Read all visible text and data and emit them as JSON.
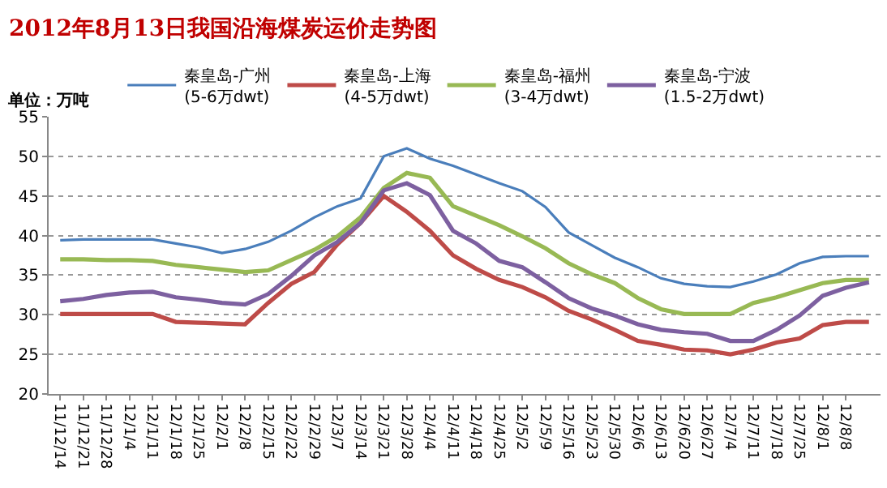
{
  "chart_data": {
    "type": "line",
    "title": "2012年8月13日我国沿海煤炭运价走势图",
    "annotations": [
      "单位：万吨"
    ],
    "categories": [
      "11/12/14",
      "11/12/21",
      "11/12/28",
      "12/1/4",
      "12/1/11",
      "12/1/18",
      "12/1/25",
      "12/2/1",
      "12/2/8",
      "12/2/15",
      "12/2/22",
      "12/2/29",
      "12/3/7",
      "12/3/14",
      "12/3/21",
      "12/3/28",
      "12/4/4",
      "12/4/11",
      "12/4/18",
      "12/4/25",
      "12/5/2",
      "12/5/9",
      "12/5/16",
      "12/5/23",
      "12/5/30",
      "12/6/6",
      "12/6/13",
      "12/6/20",
      "12/6/27",
      "12/7/4",
      "12/7/11",
      "12/7/18",
      "12/7/25",
      "12/8/1",
      "12/8/8",
      null
    ],
    "series": [
      {
        "name": "秦皇岛-广州\n(5-6万dwt)",
        "color": "#4a7ebb",
        "values": [
          39.4,
          39.5,
          39.5,
          39.5,
          39.5,
          39.0,
          38.5,
          37.8,
          38.3,
          39.2,
          40.6,
          42.3,
          43.7,
          44.7,
          50.0,
          51.0,
          49.7,
          48.8,
          47.7,
          46.6,
          45.6,
          43.6,
          40.4,
          38.8,
          37.2,
          36.0,
          34.6,
          33.9,
          33.6,
          33.5,
          34.2,
          35.1,
          36.5,
          37.3,
          37.4,
          37.4
        ]
      },
      {
        "name": "秦皇岛-上海\n(4-5万dwt)",
        "color": "#be4b48",
        "values": [
          30.1,
          30.1,
          30.1,
          30.1,
          30.1,
          29.1,
          29.0,
          28.9,
          28.8,
          31.5,
          33.9,
          35.4,
          38.9,
          41.6,
          45.0,
          43.0,
          40.6,
          37.5,
          35.8,
          34.4,
          33.5,
          32.2,
          30.5,
          29.4,
          28.1,
          26.7,
          26.2,
          25.6,
          25.5,
          25.0,
          25.6,
          26.5,
          27.0,
          28.7,
          29.1,
          29.1
        ]
      },
      {
        "name": "秦皇岛-福州\n(3-4万dwt)",
        "color": "#98b954",
        "values": [
          37.0,
          37.0,
          36.9,
          36.9,
          36.8,
          36.3,
          36.0,
          35.7,
          35.4,
          35.6,
          36.9,
          38.2,
          39.9,
          42.3,
          46.0,
          47.9,
          47.3,
          43.7,
          42.5,
          41.3,
          39.9,
          38.4,
          36.5,
          35.1,
          34.0,
          32.1,
          30.7,
          30.1,
          30.1,
          30.1,
          31.5,
          32.2,
          33.1,
          34.0,
          34.4,
          34.4
        ]
      },
      {
        "name": "秦皇岛-宁波\n(1.5-2万dwt)",
        "color": "#7d60a0",
        "values": [
          31.7,
          32.0,
          32.5,
          32.8,
          32.9,
          32.2,
          31.9,
          31.5,
          31.3,
          32.6,
          34.9,
          37.5,
          39.2,
          41.6,
          45.7,
          46.6,
          45.1,
          40.6,
          39.0,
          36.8,
          36.0,
          34.1,
          32.1,
          30.8,
          29.9,
          28.8,
          28.1,
          27.8,
          27.6,
          26.7,
          26.7,
          28.1,
          29.9,
          32.4,
          33.4,
          34.1
        ]
      }
    ],
    "ylim": [
      20,
      55
    ],
    "yticks": [
      20,
      25,
      30,
      35,
      40,
      45,
      50,
      55
    ],
    "grid": "y",
    "legend": "top",
    "marker": "none",
    "line_style": "solid"
  }
}
